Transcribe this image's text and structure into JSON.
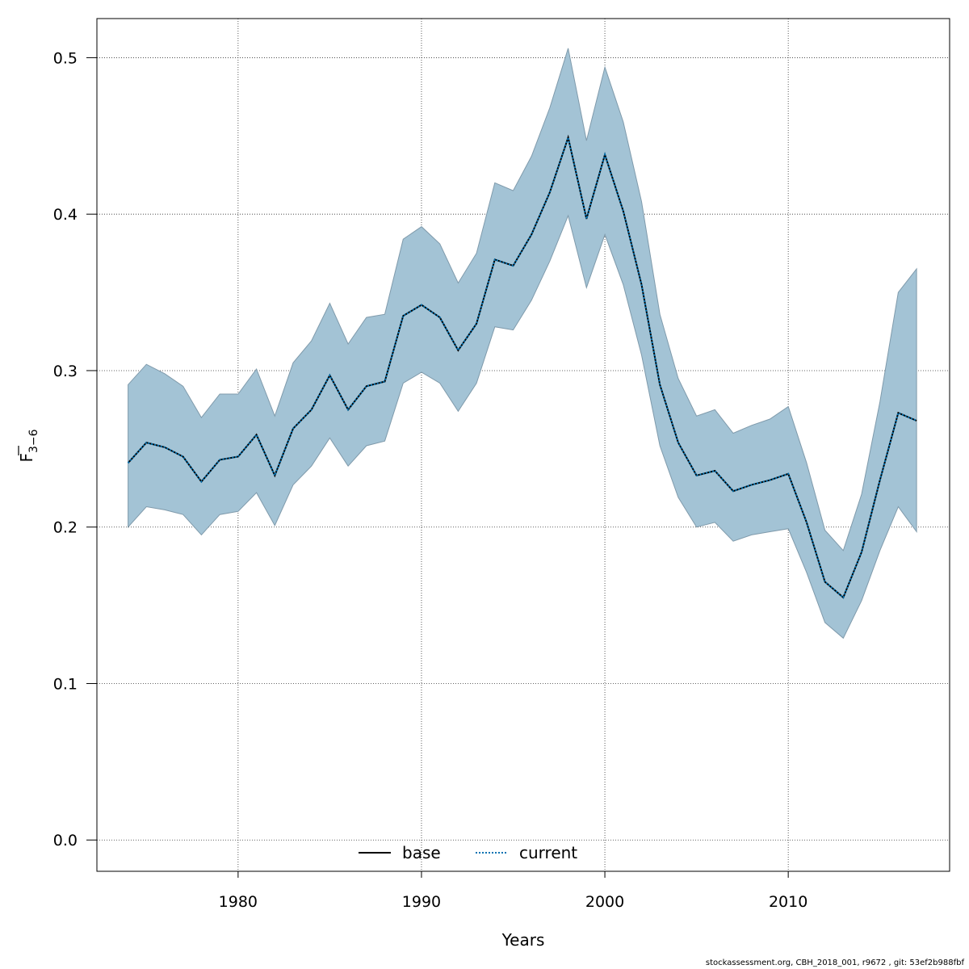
{
  "chart_data": {
    "type": "area",
    "title": "",
    "xlabel": "Years",
    "ylabel_main": "F",
    "ylabel_sub": "3−6",
    "xlim": [
      1972.3,
      2018.8
    ],
    "ylim": [
      -0.02,
      0.525
    ],
    "x_ticks": [
      1980,
      1990,
      2000,
      2010
    ],
    "y_ticks": [
      0.0,
      0.1,
      0.2,
      0.3,
      0.4,
      0.5
    ],
    "x_tick_labels": [
      "1980",
      "1990",
      "2000",
      "2010"
    ],
    "y_tick_labels": [
      "0.0",
      "0.1",
      "0.2",
      "0.3",
      "0.4",
      "0.5"
    ],
    "grid": true,
    "legend_position": "bottom-center",
    "band_color": "#a3c3d5",
    "band_edge_color": "#7f9aab",
    "x": [
      1974,
      1975,
      1976,
      1977,
      1978,
      1979,
      1980,
      1981,
      1982,
      1983,
      1984,
      1985,
      1986,
      1987,
      1988,
      1989,
      1990,
      1991,
      1992,
      1993,
      1994,
      1995,
      1996,
      1997,
      1998,
      1999,
      2000,
      2001,
      2002,
      2003,
      2004,
      2005,
      2006,
      2007,
      2008,
      2009,
      2010,
      2011,
      2012,
      2013,
      2014,
      2015,
      2016,
      2017
    ],
    "upper": [
      0.291,
      0.304,
      0.298,
      0.29,
      0.27,
      0.285,
      0.285,
      0.301,
      0.271,
      0.305,
      0.319,
      0.343,
      0.317,
      0.334,
      0.336,
      0.384,
      0.392,
      0.381,
      0.356,
      0.375,
      0.42,
      0.415,
      0.437,
      0.468,
      0.506,
      0.447,
      0.494,
      0.459,
      0.408,
      0.336,
      0.295,
      0.271,
      0.275,
      0.26,
      0.265,
      0.269,
      0.277,
      0.241,
      0.198,
      0.185,
      0.221,
      0.28,
      0.35,
      0.365
    ],
    "lower": [
      0.2,
      0.213,
      0.211,
      0.208,
      0.195,
      0.208,
      0.21,
      0.222,
      0.201,
      0.227,
      0.239,
      0.257,
      0.239,
      0.252,
      0.255,
      0.292,
      0.299,
      0.292,
      0.274,
      0.292,
      0.328,
      0.326,
      0.345,
      0.37,
      0.399,
      0.353,
      0.387,
      0.355,
      0.31,
      0.252,
      0.219,
      0.2,
      0.203,
      0.191,
      0.195,
      0.197,
      0.199,
      0.171,
      0.139,
      0.129,
      0.153,
      0.185,
      0.213,
      0.197
    ],
    "series": [
      {
        "name": "base",
        "line_style": "solid",
        "color": "#000000",
        "values": [
          0.241,
          0.254,
          0.251,
          0.245,
          0.229,
          0.243,
          0.245,
          0.259,
          0.233,
          0.263,
          0.275,
          0.297,
          0.275,
          0.29,
          0.293,
          0.335,
          0.342,
          0.334,
          0.313,
          0.33,
          0.371,
          0.367,
          0.387,
          0.414,
          0.449,
          0.397,
          0.438,
          0.402,
          0.355,
          0.291,
          0.254,
          0.233,
          0.236,
          0.223,
          0.227,
          0.23,
          0.234,
          0.203,
          0.165,
          0.155,
          0.184,
          0.23,
          0.273,
          0.268
        ]
      },
      {
        "name": "current",
        "line_style": "dotted",
        "color": "#0072b2",
        "values": [
          0.241,
          0.254,
          0.251,
          0.245,
          0.229,
          0.243,
          0.245,
          0.259,
          0.233,
          0.263,
          0.275,
          0.297,
          0.275,
          0.29,
          0.293,
          0.335,
          0.342,
          0.334,
          0.313,
          0.33,
          0.371,
          0.367,
          0.387,
          0.414,
          0.449,
          0.397,
          0.438,
          0.402,
          0.355,
          0.291,
          0.254,
          0.233,
          0.236,
          0.223,
          0.227,
          0.23,
          0.234,
          0.203,
          0.165,
          0.155,
          0.184,
          0.23,
          0.273,
          0.268
        ]
      }
    ]
  },
  "footer": "stockassessment.org, CBH_2018_001, r9672 , git: 53ef2b988fbf"
}
